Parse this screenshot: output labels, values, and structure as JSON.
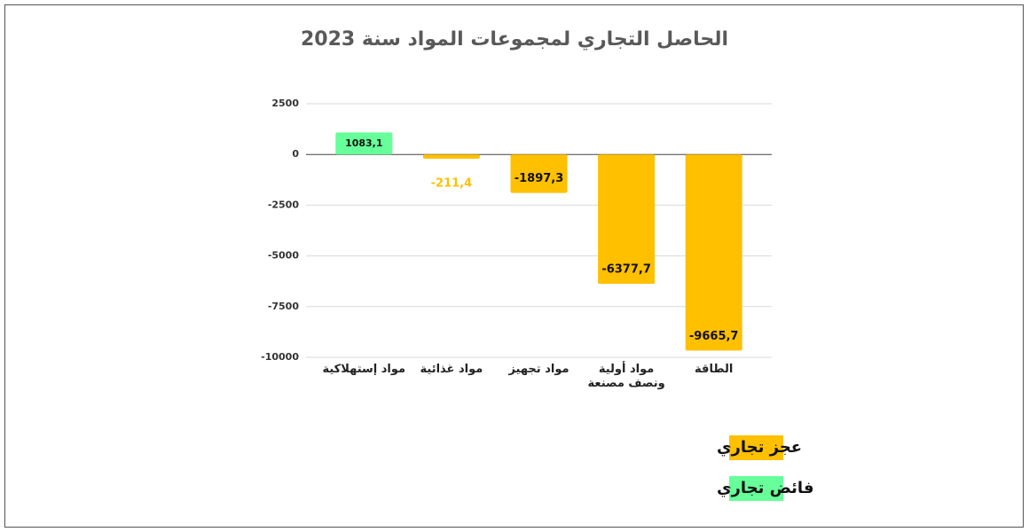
{
  "chart_data": {
    "type": "bar",
    "title": "الحاصل التجاري لمجموعات المواد سنة 2023",
    "categories": [
      "مواد إستهلاكية",
      "مواد غذائية",
      "مواد تجهيز",
      "مواد أولية ونصف مصنعة",
      "الطاقة"
    ],
    "series": [
      {
        "name": "عجز تجاري",
        "color": "#ffc000",
        "values": [
          null,
          -211.4,
          -1897.3,
          -6377.7,
          -9665.7
        ],
        "value_labels": [
          null,
          "-211,4",
          "-1897,3",
          "-6377,7",
          "-9665,7"
        ]
      },
      {
        "name": "فائض تجاري",
        "color": "#66ff99",
        "values": [
          1083.1,
          null,
          null,
          null,
          null
        ],
        "value_labels": [
          "1083,1",
          null,
          null,
          null,
          null
        ]
      }
    ],
    "ylim": [
      -10000,
      2500
    ],
    "yticks": [
      2500,
      0,
      -2500,
      -5000,
      -7500,
      -10000
    ],
    "grid": true
  }
}
